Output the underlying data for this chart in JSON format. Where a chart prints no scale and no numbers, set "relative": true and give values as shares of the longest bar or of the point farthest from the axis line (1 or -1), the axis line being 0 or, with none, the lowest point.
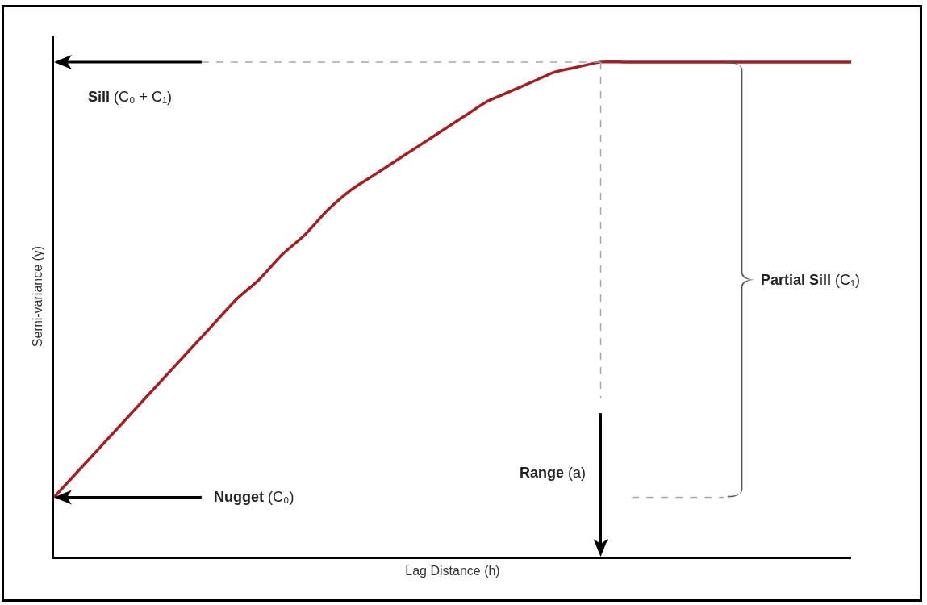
{
  "chart_data": {
    "type": "line",
    "relative": true,
    "xlabel": "Lag Distance (h)",
    "ylabel": "Semi-variance (γ)",
    "annotations": [
      "Nugget (C₀)",
      "Range (a)",
      "Partial Sill (C₁)"
    ],
    "ref_lines": [
      {
        "axis": "y",
        "value": 1,
        "label": "Sill (C₀ + C₁)",
        "color": "#a6a6a6",
        "line_style": "dashed"
      },
      {
        "axis": "y",
        "value": 0.12,
        "color": "#a6a6a6",
        "line_style": "dashed"
      }
    ],
    "categories": [
      null,
      null,
      null,
      null,
      null,
      null,
      null,
      null,
      null,
      null,
      null,
      null,
      null,
      null,
      null,
      null,
      null,
      null,
      null,
      null,
      null,
      null,
      null,
      null,
      null,
      null,
      null,
      null,
      null,
      null,
      null,
      null,
      null,
      null,
      null,
      null
    ],
    "series": [
      {
        "color": "#a31f23",
        "values": [
          0.12,
          0.17,
          0.22,
          0.27,
          0.32,
          0.37,
          0.42,
          0.47,
          0.52,
          0.56,
          0.61,
          0.65,
          0.7,
          0.74,
          0.77,
          0.8,
          0.83,
          0.86,
          0.89,
          0.92,
          0.94,
          0.96,
          0.98,
          0.99,
          1,
          1,
          1,
          1,
          1,
          1,
          1,
          1,
          1,
          1,
          1,
          1
        ]
      }
    ],
    "line_style": "solid"
  }
}
